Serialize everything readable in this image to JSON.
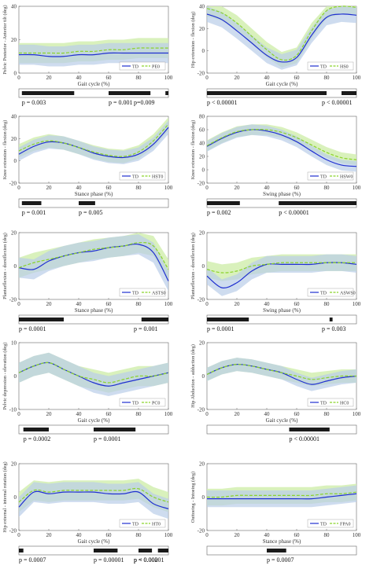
{
  "chart_data": [
    {
      "type": "line",
      "xlabel": "Gait cycle (%)",
      "ylabel": "Pelvic Posterior - Anterior tilt (deg)",
      "yticks": [
        0,
        20,
        40
      ],
      "ylim": [
        0,
        40
      ],
      "xticks": [
        0,
        20,
        40,
        60,
        80,
        100
      ],
      "legend": [
        "TD",
        "PE0"
      ],
      "series": [
        {
          "name": "TD",
          "x": [
            0,
            10,
            20,
            30,
            40,
            50,
            60,
            70,
            80,
            90,
            100
          ],
          "values": [
            11,
            11,
            10,
            10,
            11,
            11,
            12,
            12,
            12,
            12,
            12
          ]
        },
        {
          "name": "PE0",
          "x": [
            0,
            10,
            20,
            30,
            40,
            50,
            60,
            70,
            80,
            90,
            100
          ],
          "values": [
            12,
            12,
            12,
            12,
            13,
            13,
            14,
            14,
            15,
            15,
            15
          ]
        }
      ],
      "band": 6,
      "bars": [
        [
          2,
          37
        ],
        [
          60,
          88
        ],
        [
          98,
          100
        ]
      ],
      "pvalues": [
        "p = 0.003",
        "p = 0.001",
        "p=0.009"
      ]
    },
    {
      "type": "line",
      "xlabel": "Gait cycle (%)",
      "ylabel": "Hip extension - flexion (deg)",
      "yticks": [
        -20,
        0,
        20,
        40
      ],
      "ylim": [
        -20,
        40
      ],
      "xticks": [
        0,
        20,
        40,
        60,
        80,
        100
      ],
      "legend": [
        "TD",
        "HS0"
      ],
      "series": [
        {
          "name": "TD",
          "x": [
            0,
            10,
            20,
            30,
            40,
            50,
            60,
            70,
            80,
            90,
            100
          ],
          "values": [
            33,
            28,
            18,
            7,
            -4,
            -10,
            -6,
            14,
            30,
            33,
            32
          ]
        },
        {
          "name": "HS0",
          "x": [
            0,
            10,
            20,
            30,
            40,
            50,
            60,
            70,
            80,
            90,
            100
          ],
          "values": [
            38,
            34,
            25,
            13,
            1,
            -8,
            -4,
            18,
            36,
            40,
            39
          ]
        }
      ],
      "band": 7,
      "bars": [
        [
          0,
          80
        ],
        [
          90,
          100
        ]
      ],
      "pvalues": [
        "p < 0.00001",
        "p < 0.00001"
      ]
    },
    {
      "type": "line",
      "xlabel": "Stance phase (%)",
      "ylabel": "Knee extension - flexion (deg)",
      "yticks": [
        -20,
        0,
        20,
        40
      ],
      "ylim": [
        -20,
        40
      ],
      "xticks": [
        0,
        20,
        40,
        60,
        80,
        100
      ],
      "legend": [
        "TD",
        "HST0"
      ],
      "series": [
        {
          "name": "TD",
          "x": [
            0,
            10,
            20,
            30,
            40,
            50,
            60,
            70,
            80,
            90,
            100
          ],
          "values": [
            6,
            13,
            17,
            16,
            12,
            7,
            4,
            3,
            6,
            15,
            30
          ]
        },
        {
          "name": "HST0",
          "x": [
            0,
            10,
            20,
            30,
            40,
            50,
            60,
            70,
            80,
            90,
            100
          ],
          "values": [
            9,
            15,
            18,
            16,
            12,
            8,
            5,
            4,
            8,
            18,
            33
          ]
        }
      ],
      "band": 6,
      "bars": [
        [
          2,
          15
        ],
        [
          40,
          51
        ]
      ],
      "pvalues": [
        "p = 0.001",
        "p = 0.005"
      ]
    },
    {
      "type": "line",
      "xlabel": "Swing phase (%)",
      "ylabel": "Knee extension - flexion (deg)",
      "yticks": [
        -20,
        0,
        20,
        40,
        60,
        80
      ],
      "ylim": [
        -20,
        80
      ],
      "xticks": [
        0,
        20,
        40,
        60,
        80,
        100
      ],
      "legend": [
        "TD",
        "HSW0"
      ],
      "series": [
        {
          "name": "TD",
          "x": [
            0,
            10,
            20,
            30,
            40,
            50,
            60,
            70,
            80,
            90,
            100
          ],
          "values": [
            35,
            47,
            56,
            60,
            58,
            52,
            42,
            28,
            15,
            7,
            5
          ]
        },
        {
          "name": "HSW0",
          "x": [
            0,
            10,
            20,
            30,
            40,
            50,
            60,
            70,
            80,
            90,
            100
          ],
          "values": [
            36,
            48,
            57,
            60,
            60,
            56,
            48,
            37,
            26,
            18,
            15
          ]
        }
      ],
      "band": 8,
      "bars": [
        [
          0,
          22
        ],
        [
          48,
          100
        ]
      ],
      "pvalues": [
        "p = 0.002",
        "p < 0.00001"
      ]
    },
    {
      "type": "line",
      "xlabel": "Stance phase (%)",
      "ylabel": "Plantarflexion - dorsiflexion (deg)",
      "yticks": [
        -20,
        0,
        20
      ],
      "ylim": [
        -20,
        20
      ],
      "xticks": [
        0,
        20,
        40,
        60,
        80,
        100
      ],
      "legend": [
        "TD",
        "ASTS0"
      ],
      "series": [
        {
          "name": "TD",
          "x": [
            0,
            10,
            20,
            30,
            40,
            50,
            60,
            70,
            80,
            90,
            100
          ],
          "values": [
            -1,
            -2,
            3,
            6,
            8,
            9,
            11,
            12,
            13,
            8,
            -9
          ]
        },
        {
          "name": "ASTS0",
          "x": [
            0,
            10,
            20,
            30,
            40,
            50,
            60,
            70,
            80,
            90,
            100
          ],
          "values": [
            -1,
            2,
            4,
            6,
            8,
            10,
            11,
            12,
            14,
            12,
            -2
          ]
        }
      ],
      "band": 6,
      "bars": [
        [
          0,
          30
        ],
        [
          82,
          100
        ]
      ],
      "pvalues": [
        "p = 0.0001",
        "p = 0.001"
      ]
    },
    {
      "type": "line",
      "xlabel": "Swing phase (%)",
      "ylabel": "Plantarflexion - dorsiflexion (deg)",
      "yticks": [
        -20,
        0,
        20
      ],
      "ylim": [
        -20,
        20
      ],
      "xticks": [
        0,
        20,
        40,
        60,
        80,
        100
      ],
      "legend": [
        "TD",
        "ASWS0"
      ],
      "series": [
        {
          "name": "TD",
          "x": [
            0,
            10,
            20,
            30,
            40,
            50,
            60,
            70,
            80,
            90,
            100
          ],
          "values": [
            -6,
            -13,
            -10,
            -3,
            1,
            1,
            1,
            1,
            2,
            2,
            1
          ]
        },
        {
          "name": "ASWS0",
          "x": [
            0,
            10,
            20,
            30,
            40,
            50,
            60,
            70,
            80,
            90,
            100
          ],
          "values": [
            -2,
            -4,
            -3,
            0,
            1,
            2,
            2,
            2,
            2,
            2,
            2
          ]
        }
      ],
      "band": 5,
      "bars": [
        [
          0,
          28
        ],
        [
          82,
          84
        ]
      ],
      "pvalues": [
        "p = 0.0001",
        "p = 0.003"
      ]
    },
    {
      "type": "line",
      "xlabel": "Gait cycle (%)",
      "ylabel": "Pelvic depression - elevation (deg)",
      "yticks": [
        -10,
        0,
        10
      ],
      "ylim": [
        -10,
        10
      ],
      "xticks": [
        0,
        20,
        40,
        60,
        80,
        100
      ],
      "legend": [
        "TD",
        "PC0"
      ],
      "series": [
        {
          "name": "TD",
          "x": [
            0,
            10,
            20,
            30,
            40,
            50,
            60,
            70,
            80,
            90,
            100
          ],
          "values": [
            1,
            3,
            4,
            2,
            0,
            -2,
            -3,
            -2,
            -1,
            0,
            1
          ]
        },
        {
          "name": "PC0",
          "x": [
            0,
            10,
            20,
            30,
            40,
            50,
            60,
            70,
            80,
            90,
            100
          ],
          "values": [
            1,
            3,
            4,
            2,
            0,
            -1,
            -2,
            -1,
            0,
            0,
            1
          ]
        }
      ],
      "band": 3,
      "bars": [
        [
          3,
          20
        ],
        [
          50,
          78
        ]
      ],
      "pvalues": [
        "p = 0.0002",
        "p = 0.0001"
      ]
    },
    {
      "type": "line",
      "xlabel": "Gait cycle (%)",
      "ylabel": "Hip Abduction - adduction (deg)",
      "yticks": [
        -20,
        0,
        20
      ],
      "ylim": [
        -20,
        20
      ],
      "xticks": [
        0,
        20,
        40,
        60,
        80,
        100
      ],
      "legend": [
        "TD",
        "HC0"
      ],
      "series": [
        {
          "name": "TD",
          "x": [
            0,
            10,
            20,
            30,
            40,
            50,
            60,
            70,
            80,
            90,
            100
          ],
          "values": [
            1,
            5,
            7,
            6,
            4,
            2,
            -2,
            -5,
            -3,
            -1,
            0
          ]
        },
        {
          "name": "HC0",
          "x": [
            0,
            10,
            20,
            30,
            40,
            50,
            60,
            70,
            80,
            90,
            100
          ],
          "values": [
            1,
            5,
            7,
            6,
            4,
            2,
            0,
            -2,
            -1,
            0,
            0
          ]
        }
      ],
      "band": 4,
      "bars": [
        [
          55,
          82
        ]
      ],
      "pvalues": [
        "p < 0.00001"
      ]
    },
    {
      "type": "line",
      "xlabel": "Gait cycle (%)",
      "ylabel": "Hip external - internal rotation (deg)",
      "yticks": [
        -20,
        0,
        20
      ],
      "ylim": [
        -20,
        20
      ],
      "xticks": [
        0,
        20,
        40,
        60,
        80,
        100
      ],
      "legend": [
        "TD",
        "HT0"
      ],
      "series": [
        {
          "name": "TD",
          "x": [
            0,
            10,
            20,
            30,
            40,
            50,
            60,
            70,
            80,
            90,
            100
          ],
          "values": [
            -6,
            3,
            2,
            3,
            3,
            3,
            2,
            2,
            3,
            -4,
            -7
          ]
        },
        {
          "name": "HT0",
          "x": [
            0,
            10,
            20,
            30,
            40,
            50,
            60,
            70,
            80,
            90,
            100
          ],
          "values": [
            -3,
            4,
            3,
            4,
            4,
            4,
            4,
            4,
            5,
            0,
            -3
          ]
        }
      ],
      "band": 6,
      "bars": [
        [
          0,
          3
        ],
        [
          50,
          66
        ],
        [
          80,
          89
        ],
        [
          93,
          100
        ]
      ],
      "pvalues": [
        "p = 0.0007",
        "p = 0.00001",
        "p = 0.002",
        "p < 0.00001"
      ]
    },
    {
      "type": "line",
      "xlabel": "Stance phase (%)",
      "ylabel": "Outtoeing - Intoeing (deg)",
      "yticks": [
        -20,
        0,
        20
      ],
      "ylim": [
        -20,
        20
      ],
      "xticks": [
        0,
        20,
        40,
        60,
        80,
        100
      ],
      "legend": [
        "TD",
        "FPA0"
      ],
      "series": [
        {
          "name": "TD",
          "x": [
            0,
            10,
            20,
            30,
            40,
            50,
            60,
            70,
            80,
            90,
            100
          ],
          "values": [
            -1,
            -1,
            -1,
            -1,
            -1,
            -1,
            -1,
            -1,
            0,
            1,
            2
          ]
        },
        {
          "name": "FPA0",
          "x": [
            0,
            10,
            20,
            30,
            40,
            50,
            60,
            70,
            80,
            90,
            100
          ],
          "values": [
            0,
            0,
            1,
            1,
            1,
            1,
            1,
            1,
            2,
            2,
            3
          ]
        }
      ],
      "band": 5,
      "bars": [
        [
          40,
          53
        ]
      ],
      "pvalues": [
        "p = 0.0007"
      ]
    }
  ],
  "colors": {
    "td": "#1f2fd0",
    "cp": "#8ad32a",
    "band_td": "#b9cde8",
    "band_cp": "#d2efb0",
    "bar": "#1a1a1a"
  }
}
